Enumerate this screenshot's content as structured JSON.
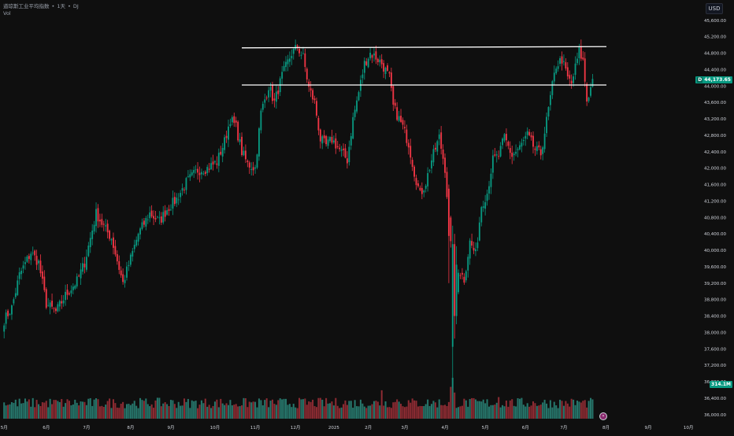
{
  "legend": {
    "symbol": "道琼斯工业平均指数",
    "interval": "1天",
    "exchange": "DJ",
    "separator": "•",
    "volume_label": "Vol"
  },
  "currency": "USD",
  "colors": {
    "background": "#0f0f0f",
    "up": "#089981",
    "down": "#f23645",
    "axis_text": "#d1d4dc",
    "line": "#ffffff",
    "vol_up": "#26766b",
    "vol_down": "#8c2b32"
  },
  "last_price_tag": {
    "flag": "D",
    "value": "44,173.65"
  },
  "volume_tag": "314.1M",
  "chart_data": {
    "type": "candlestick",
    "y_axis": {
      "ylim": [
        35900,
        45750
      ],
      "tick_values": [
        36000,
        36400,
        36800,
        37200,
        37600,
        38000,
        38400,
        38800,
        39200,
        39600,
        40000,
        40400,
        40800,
        41200,
        41600,
        42000,
        42400,
        42800,
        43200,
        43600,
        44000,
        44400,
        44800,
        45200,
        45600
      ],
      "tick_labels": [
        "36,000.00",
        "36,400.00",
        "36,800.00",
        "37,200.00",
        "37,600.00",
        "38,000.00",
        "38,400.00",
        "38,800.00",
        "39,200.00",
        "39,600.00",
        "40,000.00",
        "40,400.00",
        "40,800.00",
        "41,200.00",
        "41,600.00",
        "42,000.00",
        "42,400.00",
        "42,800.00",
        "43,200.00",
        "43,600.00",
        "44,000.00",
        "44,400.00",
        "44,800.00",
        "45,200.00",
        "45,600.00"
      ]
    },
    "x_axis": {
      "tick_labels": [
        "5月",
        "6月",
        "7月",
        "8月",
        "9月",
        "10月",
        "11月",
        "12月",
        "2025",
        "2月",
        "3月",
        "4月",
        "5月",
        "6月",
        "7月",
        "8月",
        "9月",
        "10月"
      ],
      "tick_bars": [
        0,
        22,
        43,
        66,
        87,
        110,
        131,
        152,
        172,
        190,
        209,
        230,
        251,
        272,
        292,
        314,
        336,
        357
      ]
    },
    "bars_total": 318,
    "anchors": [
      [
        0,
        38300
      ],
      [
        4,
        38600
      ],
      [
        8,
        39400
      ],
      [
        14,
        39950
      ],
      [
        18,
        39700
      ],
      [
        22,
        38700
      ],
      [
        27,
        38500
      ],
      [
        32,
        38900
      ],
      [
        38,
        39250
      ],
      [
        42,
        39700
      ],
      [
        48,
        40900
      ],
      [
        53,
        40500
      ],
      [
        56,
        40300
      ],
      [
        62,
        39200
      ],
      [
        66,
        39800
      ],
      [
        70,
        40400
      ],
      [
        76,
        40900
      ],
      [
        81,
        40700
      ],
      [
        85,
        41000
      ],
      [
        90,
        41250
      ],
      [
        95,
        41650
      ],
      [
        101,
        41950
      ],
      [
        106,
        42000
      ],
      [
        111,
        42150
      ],
      [
        115,
        42650
      ],
      [
        118,
        43200
      ],
      [
        121,
        43000
      ],
      [
        124,
        42400
      ],
      [
        127,
        42100
      ],
      [
        131,
        42000
      ],
      [
        134,
        43350
      ],
      [
        138,
        44000
      ],
      [
        141,
        43600
      ],
      [
        145,
        44250
      ],
      [
        150,
        44800
      ],
      [
        153,
        44950
      ],
      [
        156,
        44700
      ],
      [
        159,
        43950
      ],
      [
        162,
        43600
      ],
      [
        165,
        42700
      ],
      [
        168,
        42550
      ],
      [
        171,
        42700
      ],
      [
        175,
        42450
      ],
      [
        179,
        42200
      ],
      [
        182,
        43200
      ],
      [
        185,
        43850
      ],
      [
        188,
        44550
      ],
      [
        191,
        44800
      ],
      [
        194,
        44700
      ],
      [
        197,
        44550
      ],
      [
        201,
        44200
      ],
      [
        203,
        43500
      ],
      [
        205,
        43300
      ],
      [
        208,
        43000
      ],
      [
        211,
        42600
      ],
      [
        214,
        41900
      ],
      [
        217,
        41350
      ],
      [
        220,
        41650
      ],
      [
        223,
        42200
      ],
      [
        227,
        42750
      ],
      [
        230,
        42000
      ],
      [
        233,
        40100
      ],
      [
        235,
        38350
      ],
      [
        237,
        39550
      ],
      [
        240,
        39300
      ],
      [
        243,
        40200
      ],
      [
        246,
        39900
      ],
      [
        249,
        41100
      ],
      [
        252,
        41400
      ],
      [
        255,
        42200
      ],
      [
        258,
        42300
      ],
      [
        261,
        42750
      ],
      [
        265,
        42300
      ],
      [
        269,
        42500
      ],
      [
        273,
        42800
      ],
      [
        277,
        42450
      ],
      [
        280,
        42350
      ],
      [
        283,
        43150
      ],
      [
        286,
        44000
      ],
      [
        288,
        44500
      ],
      [
        291,
        44650
      ],
      [
        294,
        44200
      ],
      [
        296,
        44050
      ],
      [
        298,
        44450
      ],
      [
        300,
        44850
      ],
      [
        302,
        44600
      ],
      [
        304,
        43650
      ],
      [
        306,
        43950
      ],
      [
        307,
        44173
      ]
    ],
    "overrides": {
      "234": [
        37650,
        40600,
        36650,
        40150
      ],
      "235": [
        40150,
        40400,
        37850,
        38400
      ],
      "232": [
        41500,
        41600,
        39200,
        40350
      ],
      "236": [
        38400,
        40100,
        38200,
        39650
      ]
    },
    "annotations": [
      {
        "type": "horizontal_ray",
        "from_bar": 124,
        "level_start": 44930,
        "level_end": 44960,
        "label": ""
      },
      {
        "type": "horizontal_ray",
        "from_bar": 124,
        "level_start": 44025,
        "level_end": 44025,
        "label": ""
      }
    ],
    "volume": {
      "spikes": {
        "233": 2.8,
        "234": 3.6,
        "235": 2.3,
        "197": 2.5,
        "126": 1.8,
        "178": 1.6,
        "205": 1.7,
        "258": 1.9,
        "264": 1.6,
        "300": 1.5
      },
      "base_max_ratio": 1.0
    }
  }
}
